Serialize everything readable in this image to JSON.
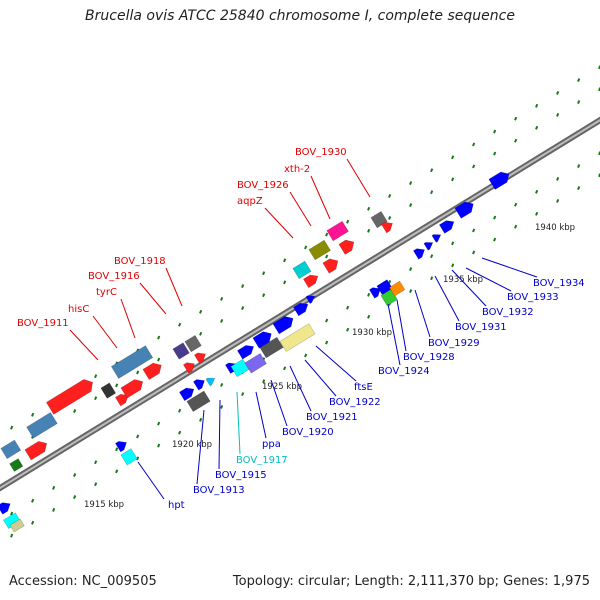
{
  "title": "Brucella ovis ATCC 25840 chromosome I, complete sequence",
  "footer": {
    "accession": "Accession: NC_009505",
    "topology": "Topology: circular; Length: 2,111,370 bp; Genes: 1,975"
  },
  "scale": {
    "ticks": [
      {
        "label": "1915 kbp"
      },
      {
        "label": "1920 kbp"
      },
      {
        "label": "1925 kbp"
      },
      {
        "label": "1930 kbp"
      },
      {
        "label": "1935 kbp"
      },
      {
        "label": "1940 kbp"
      }
    ]
  },
  "colors": {
    "backbone": "#8a8a8a",
    "red_label": "#e00000",
    "blue_label": "#0000c8",
    "cyan_label": "#00c0c0",
    "green_dash": "#1a7a1a"
  },
  "labels_top": [
    {
      "text": "BOV_1911",
      "color": "red"
    },
    {
      "text": "hisC",
      "color": "red"
    },
    {
      "text": "tyrC",
      "color": "red"
    },
    {
      "text": "BOV_1916",
      "color": "red"
    },
    {
      "text": "BOV_1918",
      "color": "red"
    },
    {
      "text": "aqpZ",
      "color": "red"
    },
    {
      "text": "BOV_1926",
      "color": "red"
    },
    {
      "text": "xth-2",
      "color": "red"
    },
    {
      "text": "BOV_1930",
      "color": "red"
    }
  ],
  "labels_bottom": [
    {
      "text": "hpt",
      "color": "blue"
    },
    {
      "text": "BOV_1913",
      "color": "blue"
    },
    {
      "text": "BOV_1915",
      "color": "blue"
    },
    {
      "text": "BOV_1917",
      "color": "cyan"
    },
    {
      "text": "ppa",
      "color": "blue"
    },
    {
      "text": "BOV_1920",
      "color": "blue"
    },
    {
      "text": "BOV_1921",
      "color": "blue"
    },
    {
      "text": "BOV_1922",
      "color": "blue"
    },
    {
      "text": "ftsE",
      "color": "blue"
    },
    {
      "text": "BOV_1924",
      "color": "blue"
    },
    {
      "text": "BOV_1928",
      "color": "blue"
    },
    {
      "text": "BOV_1929",
      "color": "blue"
    },
    {
      "text": "BOV_1931",
      "color": "blue"
    },
    {
      "text": "BOV_1932",
      "color": "blue"
    },
    {
      "text": "BOV_1933",
      "color": "blue"
    },
    {
      "text": "BOV_1934",
      "color": "blue"
    }
  ]
}
